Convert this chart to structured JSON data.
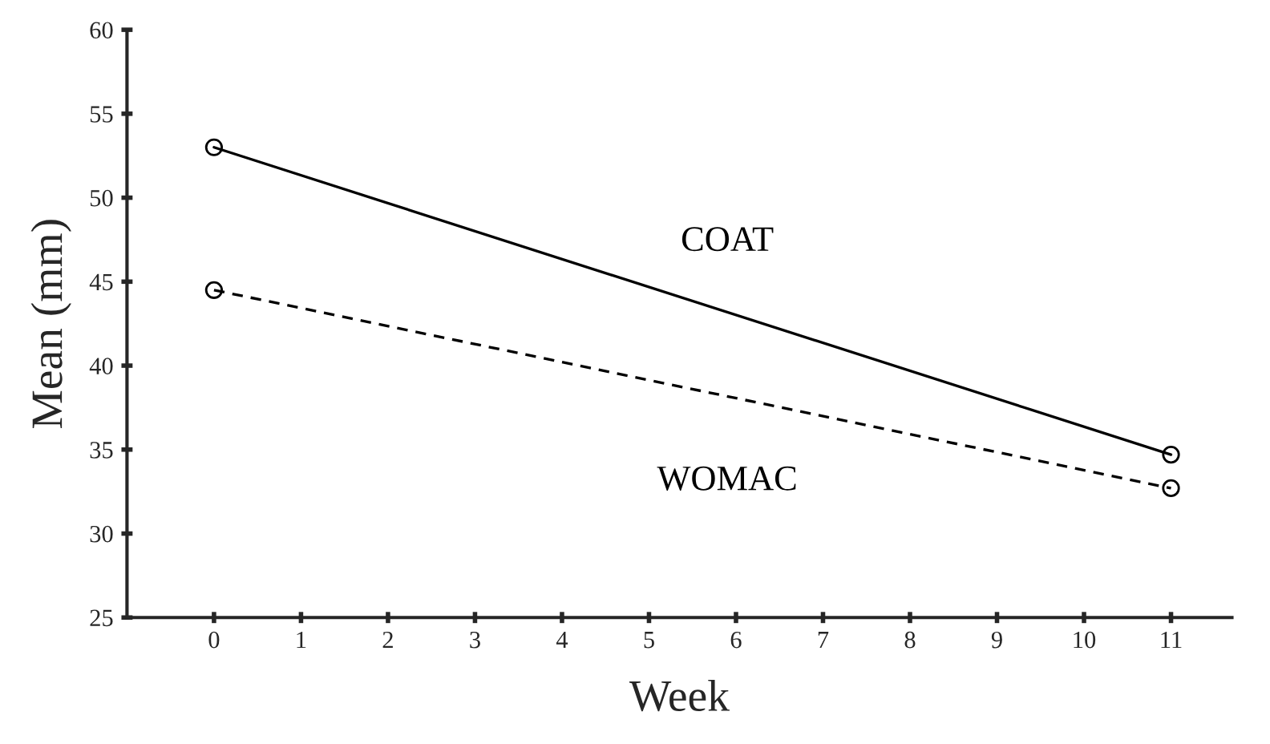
{
  "chart_data": {
    "type": "line",
    "xlabel": "Week",
    "ylabel": "Mean (mm)",
    "series": [
      {
        "name": "COAT",
        "color": "#000000",
        "values": [
          53.0,
          34.7
        ],
        "line_style": "solid"
      },
      {
        "name": "WOMAC",
        "color": "#000000",
        "values": [
          44.5,
          32.7
        ],
        "line_style": "dashed"
      }
    ],
    "x": [
      0,
      11
    ],
    "xlim": [
      -1,
      11.7
    ],
    "xticks": [
      0,
      1,
      2,
      3,
      4,
      5,
      6,
      7,
      8,
      9,
      10,
      11
    ],
    "ylim": [
      25,
      60
    ],
    "yticks": [
      25,
      30,
      35,
      40,
      45,
      50,
      55,
      60
    ],
    "marker": "circle",
    "grid": false,
    "legend": false
  }
}
